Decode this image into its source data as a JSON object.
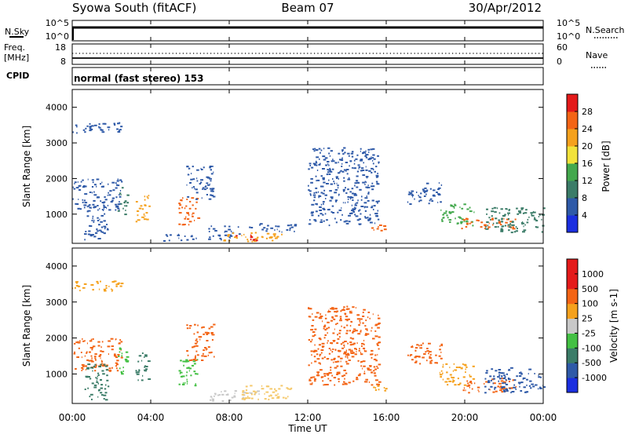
{
  "header": {
    "station": "Syowa South (fitACF)",
    "beam": "Beam 07",
    "date": "30/Apr/2012"
  },
  "status_panels": {
    "nsky": {
      "label": "N.Sky",
      "left_ticks": [
        "10^5",
        "10^0"
      ],
      "right_ticks": [
        "10^5",
        "10^0"
      ],
      "right_label": "N.Search"
    },
    "freq": {
      "label_top": "Freq.",
      "label_bottom": "[MHz]",
      "left_ticks": [
        "18",
        "8"
      ],
      "right_ticks": [
        "60",
        "0"
      ],
      "right_label": "Nave"
    },
    "cpid": {
      "label": "CPID",
      "value": "normal (fast stereo) 153"
    }
  },
  "chart_data": [
    {
      "type": "heatmap",
      "name": "power",
      "ylabel": "Slant Range [km]",
      "xlabel": "",
      "ylim": [
        180,
        4500
      ],
      "yticks": [
        "1000",
        "2000",
        "3000",
        "4000"
      ],
      "yticks_values": [
        1000,
        2000,
        3000,
        4000
      ],
      "colorbar": {
        "label": "Power [dB]",
        "ticks": [
          "4",
          "8",
          "12",
          "16",
          "20",
          "24",
          "28"
        ],
        "colors": [
          "#1b2fe0",
          "#2f5aa8",
          "#3b7c68",
          "#43a84d",
          "#f2e23a",
          "#f5a11d",
          "#f36415",
          "#e41a1a"
        ]
      },
      "regions": [
        {
          "t0": 0.0,
          "t1": 2.6,
          "r0": 3300,
          "r1": 3600,
          "c": "#2f5aa8"
        },
        {
          "t0": 0.0,
          "t1": 2.5,
          "r0": 1100,
          "r1": 2000,
          "c": "#2f5aa8"
        },
        {
          "t0": 0.6,
          "t1": 1.8,
          "r0": 300,
          "r1": 1300,
          "c": "#2f5aa8"
        },
        {
          "t0": 2.3,
          "t1": 2.8,
          "r0": 1000,
          "r1": 1800,
          "c": "#3b7c68"
        },
        {
          "t0": 3.2,
          "t1": 3.9,
          "r0": 800,
          "r1": 1600,
          "c": "#f5a11d"
        },
        {
          "t0": 4.6,
          "t1": 6.3,
          "r0": 250,
          "r1": 450,
          "c": "#2f5aa8"
        },
        {
          "t0": 5.4,
          "t1": 6.4,
          "r0": 700,
          "r1": 1500,
          "c": "#f36415"
        },
        {
          "t0": 5.8,
          "t1": 7.2,
          "r0": 1400,
          "r1": 2400,
          "c": "#2f5aa8"
        },
        {
          "t0": 6.9,
          "t1": 8.5,
          "r0": 300,
          "r1": 700,
          "c": "#2f5aa8"
        },
        {
          "t0": 7.5,
          "t1": 10.7,
          "r0": 250,
          "r1": 500,
          "c": "#f5a11d"
        },
        {
          "t0": 8.3,
          "t1": 9.6,
          "r0": 280,
          "r1": 430,
          "c": "#e41a1a"
        },
        {
          "t0": 9.0,
          "t1": 11.4,
          "r0": 500,
          "r1": 750,
          "c": "#2f5aa8"
        },
        {
          "t0": 12.0,
          "t1": 15.6,
          "r0": 700,
          "r1": 2900,
          "c": "#2f5aa8"
        },
        {
          "t0": 15.2,
          "t1": 16.0,
          "r0": 550,
          "r1": 750,
          "c": "#f36415"
        },
        {
          "t0": 17.0,
          "t1": 18.8,
          "r0": 1300,
          "r1": 1900,
          "c": "#2f5aa8"
        },
        {
          "t0": 18.7,
          "t1": 20.5,
          "r0": 700,
          "r1": 1300,
          "c": "#43a84d"
        },
        {
          "t0": 19.8,
          "t1": 22.6,
          "r0": 600,
          "r1": 900,
          "c": "#f36415"
        },
        {
          "t0": 21.0,
          "t1": 24.0,
          "r0": 500,
          "r1": 1200,
          "c": "#3b7c68"
        }
      ]
    },
    {
      "type": "heatmap",
      "name": "velocity",
      "ylabel": "Slant Range [km]",
      "xlabel": "Time UT",
      "ylim": [
        180,
        4500
      ],
      "yticks": [
        "1000",
        "2000",
        "3000",
        "4000"
      ],
      "yticks_values": [
        1000,
        2000,
        3000,
        4000
      ],
      "colorbar": {
        "label": "Velocity [m s-1]",
        "ticks": [
          "1000",
          "500",
          "100",
          "25",
          "-25",
          "-100",
          "-500",
          "-1000"
        ],
        "colors": [
          "#1b2fe0",
          "#2f5aa8",
          "#3b7c68",
          "#43c043",
          "#c8c8c8",
          "#f5a11d",
          "#f36415",
          "#e41a1a",
          "#e41a1a"
        ]
      },
      "regions": [
        {
          "t0": 0.0,
          "t1": 2.6,
          "r0": 3300,
          "r1": 3600,
          "c": "#f5a11d"
        },
        {
          "t0": 0.0,
          "t1": 2.5,
          "r0": 1100,
          "r1": 2000,
          "c": "#f36415"
        },
        {
          "t0": 0.6,
          "t1": 1.8,
          "r0": 300,
          "r1": 1300,
          "c": "#3b7c68"
        },
        {
          "t0": 2.3,
          "t1": 2.8,
          "r0": 1000,
          "r1": 1800,
          "c": "#43c043"
        },
        {
          "t0": 3.2,
          "t1": 3.9,
          "r0": 800,
          "r1": 1600,
          "c": "#3b7c68"
        },
        {
          "t0": 5.4,
          "t1": 6.4,
          "r0": 700,
          "r1": 1500,
          "c": "#43c043"
        },
        {
          "t0": 5.8,
          "t1": 7.2,
          "r0": 1400,
          "r1": 2400,
          "c": "#f36415"
        },
        {
          "t0": 7.0,
          "t1": 9.5,
          "r0": 250,
          "r1": 550,
          "c": "#c8c8c8"
        },
        {
          "t0": 8.5,
          "t1": 11.2,
          "r0": 300,
          "r1": 700,
          "c": "#f5c96b"
        },
        {
          "t0": 12.0,
          "t1": 15.6,
          "r0": 700,
          "r1": 2900,
          "c": "#f36415"
        },
        {
          "t0": 15.2,
          "t1": 16.0,
          "r0": 550,
          "r1": 750,
          "c": "#f5a11d"
        },
        {
          "t0": 17.0,
          "t1": 18.8,
          "r0": 1300,
          "r1": 1900,
          "c": "#f36415"
        },
        {
          "t0": 18.7,
          "t1": 20.5,
          "r0": 700,
          "r1": 1300,
          "c": "#f5a11d"
        },
        {
          "t0": 19.8,
          "t1": 22.6,
          "r0": 500,
          "r1": 900,
          "c": "#f36415"
        },
        {
          "t0": 21.0,
          "t1": 24.0,
          "r0": 500,
          "r1": 1200,
          "c": "#2f5aa8"
        }
      ]
    }
  ],
  "time_axis": {
    "ticks": [
      "00:00",
      "04:00",
      "08:00",
      "12:00",
      "16:00",
      "20:00",
      "00:00"
    ],
    "tick_hours": [
      0,
      4,
      8,
      12,
      16,
      20,
      24
    ],
    "label": "Time UT"
  }
}
